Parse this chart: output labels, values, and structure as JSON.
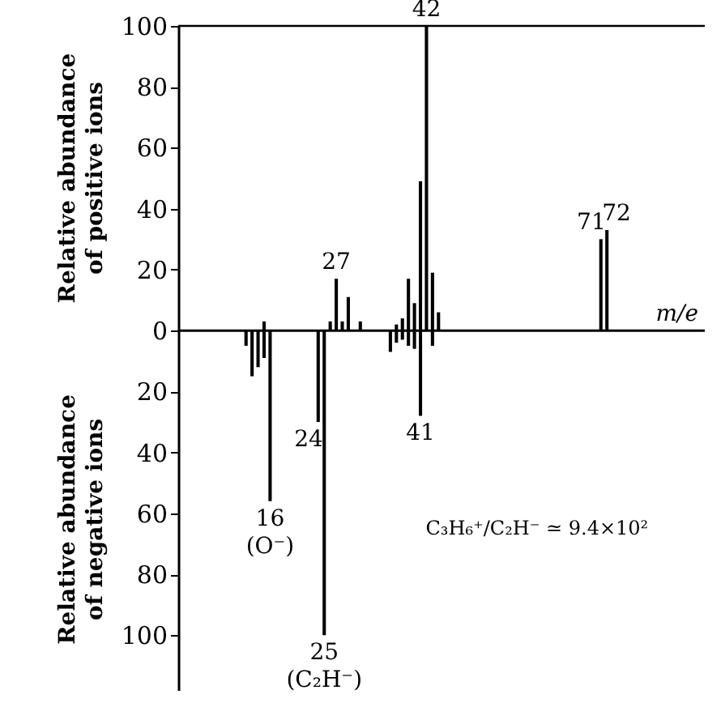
{
  "chart_data": {
    "type": "bar",
    "ylabel": "Relative abundance of positive ions",
    "xlabel": "m/e",
    "ylim": [
      -118,
      100
    ],
    "yticks": [
      {
        "value": -100,
        "label": "100"
      },
      {
        "value": -80,
        "label": "80"
      },
      {
        "value": -60,
        "label": "60"
      },
      {
        "value": -40,
        "label": "40"
      },
      {
        "value": -20,
        "label": "20"
      },
      0,
      20,
      40,
      60,
      80,
      100
    ],
    "tick_labels": "y",
    "categories": [
      null,
      null,
      null,
      null,
      null,
      null,
      null,
      null,
      null,
      null,
      null,
      null,
      null,
      null,
      null,
      null,
      null,
      null,
      null,
      null,
      null,
      null,
      null,
      null,
      null,
      null,
      null,
      null,
      null,
      null,
      null,
      null,
      null,
      null,
      null,
      null,
      null,
      null,
      null,
      null,
      null,
      null,
      null,
      null,
      null,
      null,
      null,
      null,
      null,
      null,
      null,
      null,
      null,
      null,
      null,
      null,
      null,
      null,
      null,
      null,
      null,
      null,
      null,
      null,
      null,
      null,
      null,
      null,
      null,
      null,
      null,
      null,
      null,
      null,
      null,
      null,
      null,
      null,
      null,
      null,
      null,
      null,
      null,
      null,
      null,
      null,
      null,
      null
    ],
    "series": [
      {
        "color": "#000000",
        "values": [
          null,
          null,
          null,
          null,
          null,
          null,
          null,
          null,
          null,
          null,
          null,
          null,
          null,
          null,
          3,
          null,
          null,
          null,
          null,
          null,
          null,
          null,
          null,
          null,
          null,
          3,
          17,
          3,
          11,
          null,
          3,
          null,
          null,
          null,
          null,
          null,
          2,
          4,
          17,
          9,
          49,
          100,
          19,
          6,
          null,
          null,
          null,
          null,
          null,
          null,
          null,
          null,
          null,
          null,
          null,
          null,
          null,
          null,
          null,
          null,
          null,
          null,
          null,
          null,
          null,
          null,
          null,
          null,
          null,
          null,
          30,
          33,
          null,
          null,
          null,
          null,
          null,
          null,
          null,
          null,
          null,
          null,
          null,
          null,
          null,
          null,
          null,
          null
        ]
      },
      {
        "color": "#000000",
        "values": [
          null,
          null,
          null,
          null,
          null,
          null,
          null,
          null,
          null,
          null,
          null,
          -5,
          -15,
          -12,
          -9,
          -56,
          null,
          null,
          null,
          null,
          null,
          null,
          null,
          -30,
          -100,
          null,
          null,
          null,
          null,
          null,
          null,
          null,
          null,
          null,
          null,
          -7,
          -4,
          -3,
          -5,
          -6,
          -28,
          null,
          -5,
          null,
          null,
          null,
          null,
          null,
          null,
          null,
          null,
          null,
          null,
          null,
          null,
          null,
          null,
          null,
          null,
          null,
          null,
          null,
          null,
          null,
          null,
          null,
          null,
          null,
          null,
          null,
          null,
          null,
          null,
          null,
          null,
          null,
          null,
          null,
          null,
          null,
          null,
          null,
          null,
          null,
          null,
          null,
          null,
          null
        ]
      }
    ],
    "annotations": [
      "Relative abundance of negative ions",
      "C₃H₆⁺/C₂H⁻ ≃ 9.4×10²",
      "(O⁻)",
      "(C₂H⁻)",
      {
        "text": "16",
        "y": -56
      },
      {
        "text": "24",
        "y": -30
      },
      {
        "text": "25",
        "y": -100
      },
      {
        "text": "27",
        "y": 17
      },
      {
        "text": "41",
        "y": -28
      },
      {
        "text": "42",
        "y": 100
      },
      {
        "text": "71",
        "y": 30
      },
      {
        "text": "72",
        "y": 33
      }
    ]
  }
}
